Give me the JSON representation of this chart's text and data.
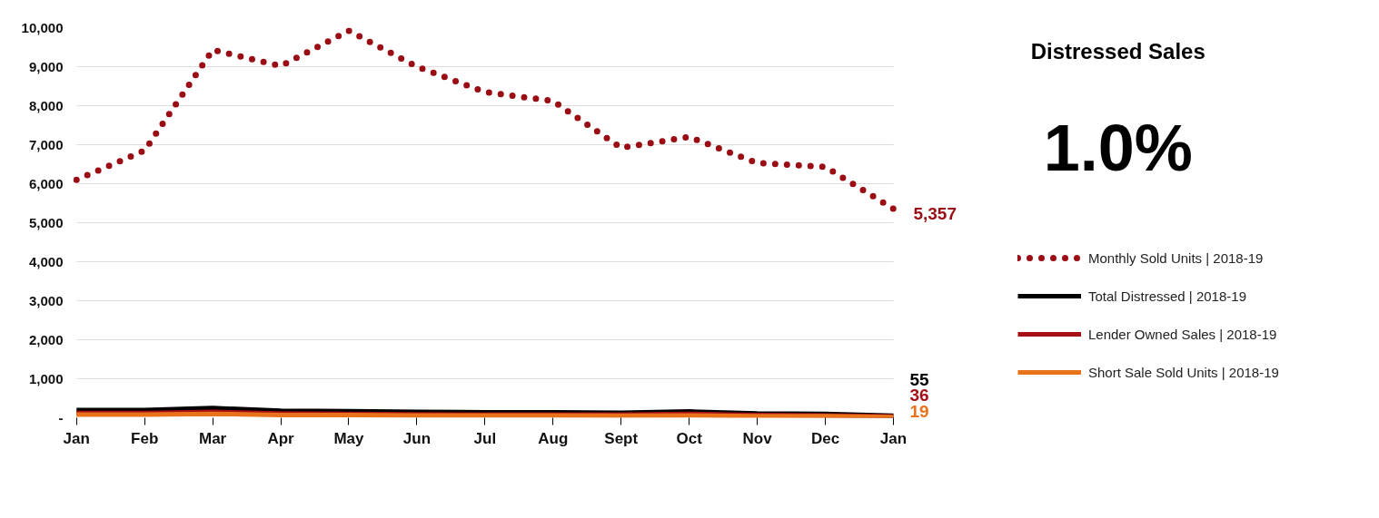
{
  "chart_data": {
    "type": "line",
    "title": "Distressed Sales",
    "categories": [
      "Jan",
      "Feb",
      "Mar",
      "Apr",
      "May",
      "Jun",
      "Jul",
      "Aug",
      "Sept",
      "Oct",
      "Nov",
      "Dec",
      "Jan"
    ],
    "series": [
      {
        "name": "Monthly Sold Units | 2018-19",
        "color": "#9b0d14",
        "line_style": "dotted",
        "values": [
          6100,
          6850,
          9430,
          9020,
          9920,
          9000,
          8350,
          8120,
          6920,
          7200,
          6530,
          6430,
          5357
        ],
        "value_labels": [
          null,
          null,
          null,
          null,
          null,
          null,
          null,
          null,
          null,
          null,
          null,
          null,
          "5,357"
        ]
      },
      {
        "name": "Total Distressed | 2018-19",
        "color": "#000000",
        "line_style": "solid",
        "values": [
          200,
          200,
          250,
          180,
          170,
          150,
          140,
          140,
          130,
          160,
          110,
          100,
          55
        ],
        "value_labels": [
          null,
          null,
          null,
          null,
          null,
          null,
          null,
          null,
          null,
          null,
          null,
          null,
          "55"
        ]
      },
      {
        "name": "Lender Owned Sales | 2018-19",
        "color": "#a50f15",
        "line_style": "solid",
        "values": [
          120,
          120,
          150,
          110,
          100,
          90,
          80,
          80,
          80,
          100,
          70,
          60,
          36
        ],
        "value_labels": [
          null,
          null,
          null,
          null,
          null,
          null,
          null,
          null,
          null,
          null,
          null,
          null,
          "36"
        ]
      },
      {
        "name": "Short Sale Sold Units | 2018-19",
        "color": "#e8731b",
        "line_style": "solid",
        "values": [
          80,
          80,
          100,
          70,
          70,
          60,
          60,
          60,
          50,
          60,
          40,
          40,
          19
        ],
        "value_labels": [
          null,
          null,
          null,
          null,
          null,
          null,
          null,
          null,
          null,
          null,
          null,
          null,
          "19"
        ]
      }
    ],
    "ylim": [
      0,
      10000
    ],
    "yticks": [
      {
        "value": 0,
        "label": "-"
      },
      {
        "value": 1000,
        "label": "1,000"
      },
      {
        "value": 2000,
        "label": "2,000"
      },
      {
        "value": 3000,
        "label": "3,000"
      },
      {
        "value": 4000,
        "label": "4,000"
      },
      {
        "value": 5000,
        "label": "5,000"
      },
      {
        "value": 6000,
        "label": "6,000"
      },
      {
        "value": 7000,
        "label": "7,000"
      },
      {
        "value": 8000,
        "label": "8,000"
      },
      {
        "value": 9000,
        "label": "9,000"
      },
      {
        "value": 10000,
        "label": "10,000"
      }
    ],
    "grid": "y",
    "legend": "right",
    "annotations": [
      "1.0%"
    ]
  }
}
